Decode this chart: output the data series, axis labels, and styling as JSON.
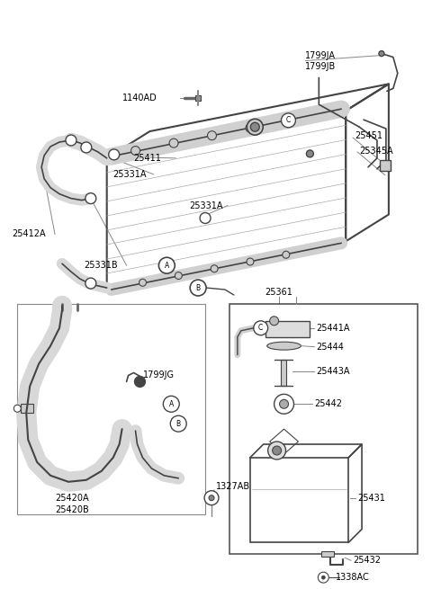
{
  "bg_color": "#ffffff",
  "lc": "#444444",
  "lc_light": "#888888",
  "figsize": [
    4.8,
    6.55
  ],
  "dpi": 100,
  "xlim": [
    0,
    480
  ],
  "ylim": [
    0,
    655
  ]
}
